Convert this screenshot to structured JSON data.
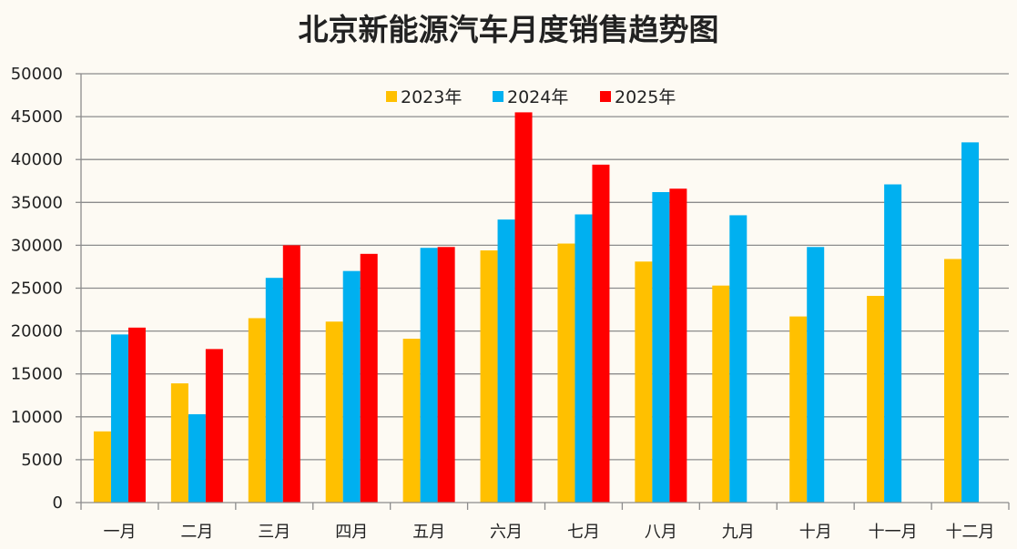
{
  "chart_data": {
    "type": "bar",
    "title": "北京新能源汽车月度销售趋势图",
    "xlabel": "",
    "ylabel": "",
    "ylim": [
      0,
      50000
    ],
    "yticks": [
      "0",
      "5000",
      "10000",
      "15000",
      "20000",
      "25000",
      "30000",
      "35000",
      "40000",
      "45000",
      "50000"
    ],
    "grid": true,
    "legend_position": "top-center",
    "categories": [
      "一月",
      "二月",
      "三月",
      "四月",
      "五月",
      "六月",
      "七月",
      "八月",
      "九月",
      "十月",
      "十一月",
      "十二月"
    ],
    "series": [
      {
        "name": "2023年",
        "color": "#ffc000",
        "values": [
          8300,
          13900,
          21500,
          21100,
          19100,
          29400,
          30200,
          28100,
          25300,
          21700,
          24100,
          28400
        ]
      },
      {
        "name": "2024年",
        "color": "#00b0f0",
        "values": [
          19600,
          10300,
          26200,
          27000,
          29700,
          33000,
          33600,
          36200,
          33500,
          29800,
          37100,
          42000
        ]
      },
      {
        "name": "2025年",
        "color": "#ff0000",
        "values": [
          20400,
          17900,
          30000,
          29000,
          29800,
          45500,
          39400,
          36600,
          null,
          null,
          null,
          null
        ]
      }
    ]
  }
}
